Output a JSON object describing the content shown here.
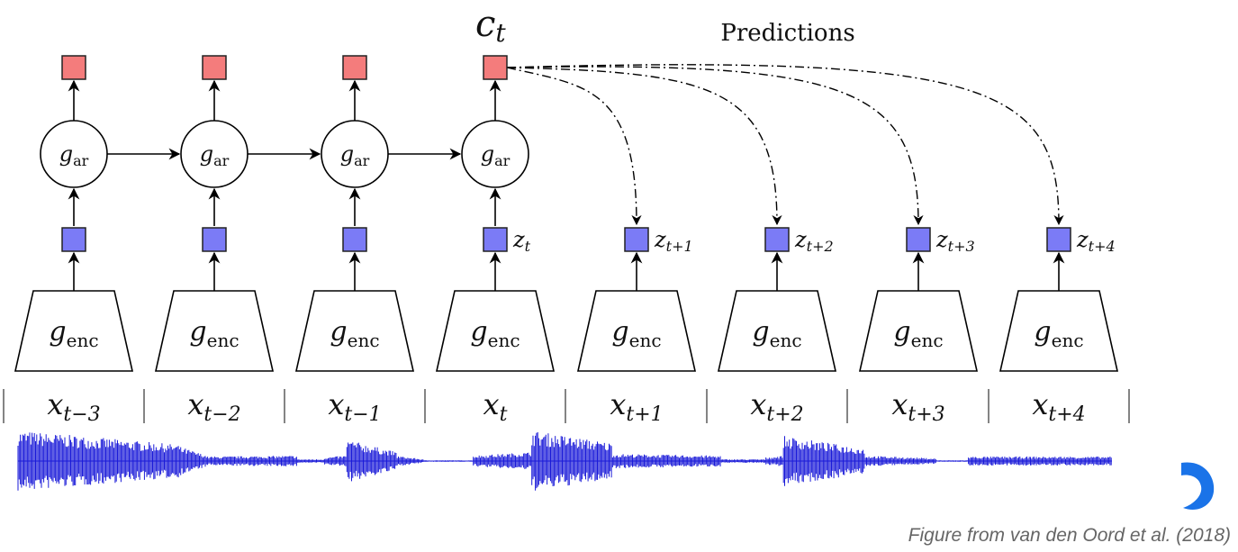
{
  "title": "Predictions",
  "context_label": {
    "main": "c",
    "sub": "t"
  },
  "ar_label": {
    "main": "g",
    "sub": "ar"
  },
  "enc_label": {
    "main": "g",
    "sub": "enc"
  },
  "ar_steps": 4,
  "z_labels": [
    {
      "main": "z",
      "sub": "t"
    },
    {
      "main": "z",
      "sub": "t+1"
    },
    {
      "main": "z",
      "sub": "t+2"
    },
    {
      "main": "z",
      "sub": "t+3"
    },
    {
      "main": "z",
      "sub": "t+4"
    }
  ],
  "x_labels": [
    {
      "main": "x",
      "sub": "t−3"
    },
    {
      "main": "x",
      "sub": "t−2"
    },
    {
      "main": "x",
      "sub": "t−1"
    },
    {
      "main": "x",
      "sub": "t"
    },
    {
      "main": "x",
      "sub": "t+1"
    },
    {
      "main": "x",
      "sub": "t+2"
    },
    {
      "main": "x",
      "sub": "t+3"
    },
    {
      "main": "x",
      "sub": "t+4"
    }
  ],
  "caption": "Figure from  van den Oord et al. (2018)",
  "colors": {
    "context_box": "#f47c7c",
    "latent_box": "#7b7bf6",
    "waveform": "#1a1ad8",
    "logo": "#1a73e8"
  }
}
